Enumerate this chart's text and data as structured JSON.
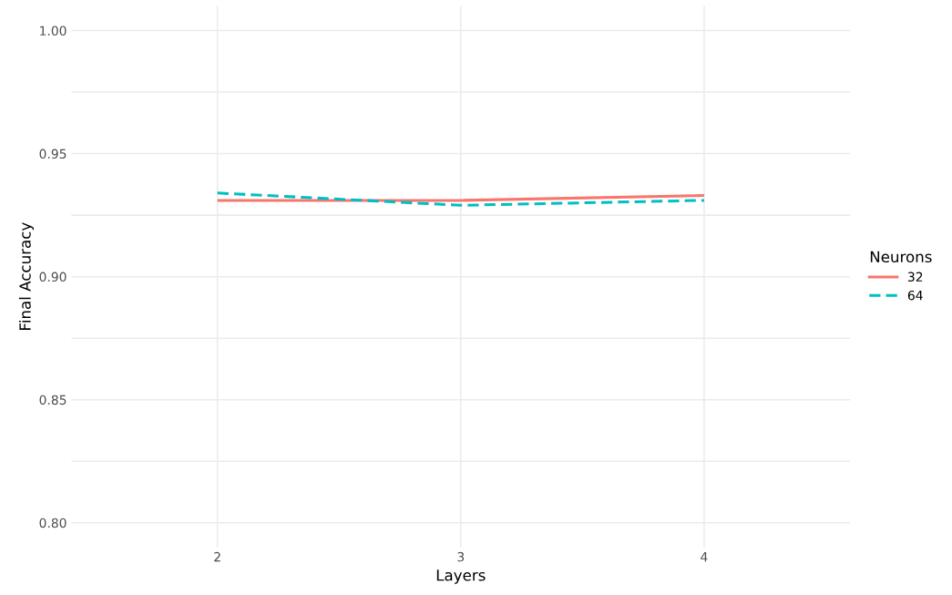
{
  "chart_data": {
    "type": "line",
    "xlabel": "Layers",
    "ylabel": "Final Accuracy",
    "legend_title": "Neurons",
    "x": [
      2,
      3,
      4
    ],
    "series": [
      {
        "name": "32",
        "color": "#f8766d",
        "line_style": "solid",
        "values": [
          0.931,
          0.931,
          0.933
        ]
      },
      {
        "name": "64",
        "color": "#00bfc4",
        "line_style": "dashed",
        "values": [
          0.934,
          0.929,
          0.931
        ]
      }
    ],
    "xlim": [
      1.4,
      4.6
    ],
    "xticks": [
      2,
      3,
      4
    ],
    "ylim": [
      0.79,
      1.01
    ],
    "yticks": [
      {
        "value": 0.8,
        "label": "0.80"
      },
      {
        "value": 0.825,
        "label": null
      },
      {
        "value": 0.85,
        "label": "0.85"
      },
      {
        "value": 0.875,
        "label": null
      },
      {
        "value": 0.9,
        "label": "0.90"
      },
      {
        "value": 0.925,
        "label": null
      },
      {
        "value": 0.95,
        "label": "0.95"
      },
      {
        "value": 0.975,
        "label": null
      },
      {
        "value": 1.0,
        "label": "1.00"
      }
    ],
    "grid": true,
    "legend": "right",
    "marker": "none"
  }
}
